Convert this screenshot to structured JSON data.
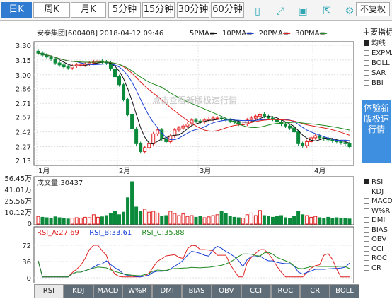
{
  "period_tabs": [
    {
      "label": "日K",
      "active": true
    },
    {
      "label": "周K",
      "active": false
    },
    {
      "label": "月K",
      "active": false
    },
    {
      "label": "5分钟",
      "active": false
    },
    {
      "label": "15分钟",
      "active": false
    },
    {
      "label": "30分钟",
      "active": false
    },
    {
      "label": "60分钟",
      "active": false
    }
  ],
  "tools": [
    "phone-icon",
    "expand-icon",
    "save-icon",
    "share-icon",
    "settings-icon"
  ],
  "adjust_label": "不复权",
  "main": {
    "info": "安泰集团[600408] 2018-04-12 09:46",
    "ma_legend": [
      {
        "label": "5PMA=",
        "color": "#111111"
      },
      {
        "label": "10PMA=",
        "color": "#1a3fd6"
      },
      {
        "label": "20PMA=",
        "color": "#e02020"
      },
      {
        "label": "30PMA=",
        "color": "#208a20"
      }
    ],
    "y_ticks": [
      "3.30",
      "3.15",
      "3.00",
      "2.86",
      "2.71",
      "2.57",
      "2.42",
      "2.27",
      "2.13"
    ],
    "y_values": [
      3.3,
      3.15,
      3.0,
      2.86,
      2.71,
      2.57,
      2.42,
      2.27,
      2.13
    ],
    "x_labels": [
      "1月",
      "2月",
      "3月",
      "4月"
    ],
    "watermark": "点击查看新版极速行情"
  },
  "volume": {
    "label": "成交量:30437",
    "y_ticks": [
      "56.45万",
      "41.01万",
      "25.56万",
      "10.12万",
      "0"
    ]
  },
  "rsi": {
    "legend": [
      {
        "label": "RSI_A:27.69",
        "color": "#e02020"
      },
      {
        "label": "RSI_B:33.61",
        "color": "#1a3fd6"
      },
      {
        "label": "RSI_C:35.88",
        "color": "#208a20"
      }
    ],
    "y_ticks": [
      "72",
      "36",
      "0"
    ]
  },
  "indicator_panel": {
    "title": "主要指标",
    "items": [
      {
        "label": "均线",
        "checked": true
      },
      {
        "label": "EXPMA",
        "checked": false
      },
      {
        "label": "BOLL",
        "checked": false
      },
      {
        "label": "SAR",
        "checked": false
      },
      {
        "label": "BBI",
        "checked": false
      }
    ],
    "sub_items": [
      {
        "label": "RSI",
        "checked": true
      },
      {
        "label": "KDJ",
        "checked": false
      },
      {
        "label": "MACD",
        "checked": false
      },
      {
        "label": "W%R",
        "checked": false
      },
      {
        "label": "DMI",
        "checked": false
      },
      {
        "label": "BIAS",
        "checked": false
      },
      {
        "label": "OBV",
        "checked": false
      },
      {
        "label": "CCI",
        "checked": false
      },
      {
        "label": "ROC",
        "checked": false
      },
      {
        "label": "CR",
        "checked": false
      }
    ]
  },
  "promo": "体验新版极速行情",
  "bottom_tabs": [
    "RSI",
    "KDJ",
    "MACD",
    "W%R",
    "DMI",
    "BIAS",
    "OBV",
    "CCI",
    "ROC",
    "CR",
    "BOLL"
  ]
}
